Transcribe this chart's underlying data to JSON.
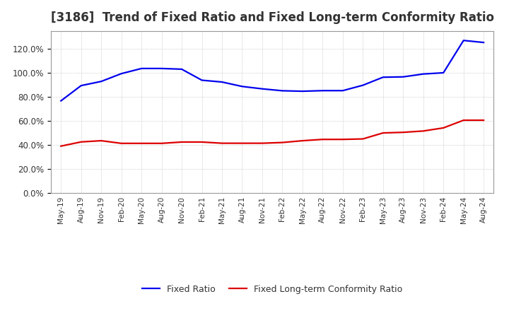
{
  "title": "[3186]  Trend of Fixed Ratio and Fixed Long-term Conformity Ratio",
  "title_fontsize": 12,
  "title_color": "#333333",
  "ylim": [
    0,
    1.35
  ],
  "yticks": [
    0.0,
    0.2,
    0.4,
    0.6,
    0.8,
    1.0,
    1.2
  ],
  "background_color": "#ffffff",
  "plot_bg_color": "#ffffff",
  "grid_color": "#aaaaaa",
  "fixed_ratio_color": "#0000ee",
  "fixed_longterm_color": "#dd0000",
  "fixed_ratio_label": "Fixed Ratio",
  "fixed_longterm_label": "Fixed Long-term Conformity Ratio",
  "x_labels": [
    "May-19",
    "Aug-19",
    "Nov-19",
    "Feb-20",
    "May-20",
    "Aug-20",
    "Nov-20",
    "Feb-21",
    "May-21",
    "Aug-21",
    "Nov-21",
    "Feb-22",
    "May-22",
    "Aug-22",
    "Nov-22",
    "Feb-23",
    "May-23",
    "Aug-23",
    "Nov-23",
    "Feb-24",
    "May-24",
    "Aug-24"
  ],
  "fixed_ratio": [
    0.768,
    0.895,
    0.93,
    0.995,
    1.038,
    1.038,
    1.032,
    0.94,
    0.925,
    0.888,
    0.868,
    0.852,
    0.848,
    0.853,
    0.853,
    0.898,
    0.965,
    0.968,
    0.992,
    1.002,
    1.272,
    1.255
  ],
  "fixed_longterm": [
    0.39,
    0.425,
    0.435,
    0.413,
    0.413,
    0.413,
    0.424,
    0.424,
    0.414,
    0.414,
    0.414,
    0.42,
    0.435,
    0.446,
    0.446,
    0.45,
    0.5,
    0.505,
    0.516,
    0.542,
    0.606,
    0.606
  ]
}
